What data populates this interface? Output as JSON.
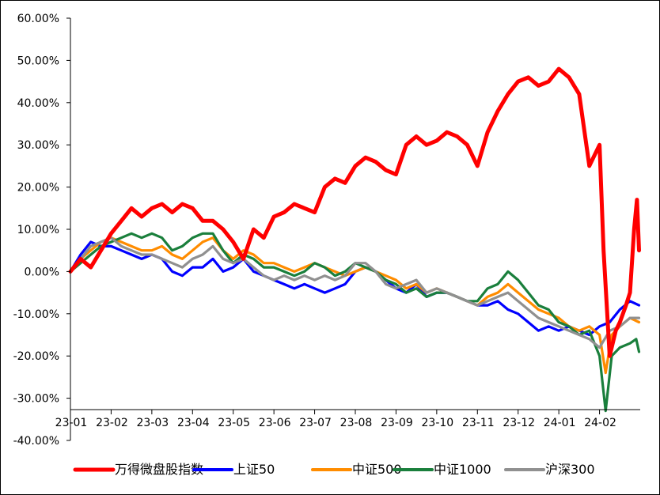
{
  "chart_data": {
    "type": "line",
    "title": "",
    "xlabel": "",
    "ylabel": "",
    "y_unit": "%",
    "ylim": [
      -40,
      60
    ],
    "yticks": [
      60,
      50,
      40,
      30,
      20,
      10,
      0,
      -10,
      -20,
      -30,
      -40
    ],
    "ytick_labels": [
      "60.00%",
      "50.00%",
      "40.00%",
      "30.00%",
      "20.00%",
      "10.00%",
      "0.00%",
      "-10.00%",
      "-20.00%",
      "-30.00%",
      "-40.00%"
    ],
    "xlim": [
      0,
      14
    ],
    "xticks": [
      0,
      1,
      2,
      3,
      4,
      5,
      6,
      7,
      8,
      9,
      10,
      11,
      12,
      13
    ],
    "xtick_labels": [
      "23-01",
      "23-02",
      "23-03",
      "23-04",
      "23-05",
      "23-06",
      "23-07",
      "23-08",
      "23-09",
      "23-10",
      "23-11",
      "23-12",
      "24-01",
      "24-02"
    ],
    "x_note_axis": "months since 23-01 start",
    "grid": false,
    "legend_position": "bottom",
    "series": [
      {
        "name": "万得微盘股指数",
        "color": "#ff0000",
        "x": [
          0,
          0.25,
          0.5,
          0.75,
          1.0,
          1.25,
          1.5,
          1.75,
          2.0,
          2.25,
          2.5,
          2.75,
          3.0,
          3.25,
          3.5,
          3.75,
          4.0,
          4.25,
          4.5,
          4.75,
          5.0,
          5.25,
          5.5,
          5.75,
          6.0,
          6.25,
          6.5,
          6.75,
          7.0,
          7.25,
          7.5,
          7.75,
          8.0,
          8.25,
          8.5,
          8.75,
          9.0,
          9.25,
          9.5,
          9.75,
          10.0,
          10.25,
          10.5,
          10.75,
          11.0,
          11.25,
          11.5,
          11.75,
          12.0,
          12.25,
          12.5,
          12.75,
          13.0,
          13.1,
          13.25,
          13.4,
          13.5,
          13.65,
          13.75,
          13.85,
          13.92,
          13.97
        ],
        "values": [
          0,
          3,
          1,
          5,
          9,
          12,
          15,
          13,
          15,
          16,
          14,
          16,
          15,
          12,
          12,
          10,
          7,
          3,
          10,
          8,
          13,
          14,
          16,
          15,
          14,
          20,
          22,
          21,
          25,
          27,
          26,
          24,
          23,
          30,
          32,
          30,
          31,
          33,
          32,
          30,
          25,
          33,
          38,
          42,
          45,
          46,
          44,
          45,
          48,
          46,
          42,
          25,
          30,
          5,
          -20,
          -14,
          -12,
          -8,
          -5,
          10,
          17,
          5
        ]
      },
      {
        "name": "上证50",
        "color": "#0000ff",
        "x": [
          0,
          0.25,
          0.5,
          0.75,
          1.0,
          1.25,
          1.5,
          1.75,
          2.0,
          2.25,
          2.5,
          2.75,
          3.0,
          3.25,
          3.5,
          3.75,
          4.0,
          4.25,
          4.5,
          4.75,
          5.0,
          5.25,
          5.5,
          5.75,
          6.0,
          6.25,
          6.5,
          6.75,
          7.0,
          7.25,
          7.5,
          7.75,
          8.0,
          8.25,
          8.5,
          8.75,
          9.0,
          9.25,
          9.5,
          9.75,
          10.0,
          10.25,
          10.5,
          10.75,
          11.0,
          11.25,
          11.5,
          11.75,
          12.0,
          12.25,
          12.5,
          12.75,
          13.0,
          13.25,
          13.5,
          13.75,
          13.97
        ],
        "values": [
          0,
          4,
          7,
          6,
          6,
          5,
          4,
          3,
          4,
          3,
          0,
          -1,
          1,
          1,
          3,
          0,
          1,
          3,
          0,
          -1,
          -2,
          -3,
          -4,
          -3,
          -4,
          -5,
          -4,
          -3,
          0,
          1,
          0,
          -2,
          -4,
          -5,
          -3,
          -6,
          -5,
          -5,
          -6,
          -7,
          -8,
          -8,
          -7,
          -9,
          -10,
          -12,
          -14,
          -13,
          -14,
          -13,
          -14,
          -15,
          -13,
          -12,
          -9,
          -7,
          -8
        ]
      },
      {
        "name": "中证500",
        "color": "#ff8c00",
        "x": [
          0,
          0.25,
          0.5,
          0.75,
          1.0,
          1.25,
          1.5,
          1.75,
          2.0,
          2.25,
          2.5,
          2.75,
          3.0,
          3.25,
          3.5,
          3.75,
          4.0,
          4.25,
          4.5,
          4.75,
          5.0,
          5.25,
          5.5,
          5.75,
          6.0,
          6.25,
          6.5,
          6.75,
          7.0,
          7.25,
          7.5,
          7.75,
          8.0,
          8.25,
          8.5,
          8.75,
          9.0,
          9.25,
          9.5,
          9.75,
          10.0,
          10.25,
          10.5,
          10.75,
          11.0,
          11.25,
          11.5,
          11.75,
          12.0,
          12.25,
          12.5,
          12.75,
          13.0,
          13.15,
          13.3,
          13.5,
          13.75,
          13.97
        ],
        "values": [
          0,
          3,
          5,
          7,
          8,
          7,
          6,
          5,
          5,
          6,
          4,
          3,
          5,
          7,
          8,
          5,
          3,
          5,
          4,
          2,
          2,
          1,
          0,
          1,
          2,
          1,
          0,
          -1,
          0,
          1,
          0,
          -1,
          -2,
          -4,
          -3,
          -5,
          -4,
          -5,
          -6,
          -7,
          -8,
          -6,
          -5,
          -3,
          -5,
          -7,
          -9,
          -10,
          -11,
          -13,
          -14,
          -13,
          -15,
          -24,
          -15,
          -13,
          -11,
          -12
        ]
      },
      {
        "name": "中证1000",
        "color": "#1a7f3c",
        "x": [
          0,
          0.25,
          0.5,
          0.75,
          1.0,
          1.25,
          1.5,
          1.75,
          2.0,
          2.25,
          2.5,
          2.75,
          3.0,
          3.25,
          3.5,
          3.75,
          4.0,
          4.25,
          4.5,
          4.75,
          5.0,
          5.25,
          5.5,
          5.75,
          6.0,
          6.25,
          6.5,
          6.75,
          7.0,
          7.25,
          7.5,
          7.75,
          8.0,
          8.25,
          8.5,
          8.75,
          9.0,
          9.25,
          9.5,
          9.75,
          10.0,
          10.25,
          10.5,
          10.75,
          11.0,
          11.25,
          11.5,
          11.75,
          12.0,
          12.25,
          12.5,
          12.75,
          13.0,
          13.15,
          13.3,
          13.5,
          13.75,
          13.9,
          13.97
        ],
        "values": [
          0,
          2,
          4,
          6,
          7,
          8,
          9,
          8,
          9,
          8,
          5,
          6,
          8,
          9,
          9,
          5,
          2,
          4,
          3,
          1,
          1,
          0,
          -1,
          0,
          2,
          1,
          -1,
          0,
          2,
          1,
          0,
          -2,
          -3,
          -5,
          -4,
          -6,
          -5,
          -5,
          -6,
          -7,
          -7,
          -4,
          -3,
          0,
          -2,
          -5,
          -8,
          -9,
          -12,
          -13,
          -15,
          -14,
          -20,
          -33,
          -20,
          -18,
          -17,
          -16,
          -19
        ]
      },
      {
        "name": "沪深300",
        "color": "#909090",
        "x": [
          0,
          0.25,
          0.5,
          0.75,
          1.0,
          1.25,
          1.5,
          1.75,
          2.0,
          2.25,
          2.5,
          2.75,
          3.0,
          3.25,
          3.5,
          3.75,
          4.0,
          4.25,
          4.5,
          4.75,
          5.0,
          5.25,
          5.5,
          5.75,
          6.0,
          6.25,
          6.5,
          6.75,
          7.0,
          7.25,
          7.5,
          7.75,
          8.0,
          8.25,
          8.5,
          8.75,
          9.0,
          9.25,
          9.5,
          9.75,
          10.0,
          10.25,
          10.5,
          10.75,
          11.0,
          11.25,
          11.5,
          11.75,
          12.0,
          12.25,
          12.5,
          12.75,
          13.0,
          13.25,
          13.5,
          13.75,
          13.97
        ],
        "values": [
          0,
          3,
          6,
          7,
          8,
          6,
          5,
          4,
          4,
          3,
          2,
          1,
          3,
          4,
          6,
          3,
          2,
          3,
          1,
          -1,
          -2,
          -1,
          -2,
          -1,
          -2,
          -1,
          -2,
          -1,
          2,
          2,
          0,
          -3,
          -4,
          -3,
          -2,
          -5,
          -4,
          -5,
          -6,
          -7,
          -8,
          -7,
          -6,
          -5,
          -7,
          -9,
          -11,
          -12,
          -13,
          -14,
          -15,
          -16,
          -18,
          -14,
          -13,
          -11,
          -11
        ]
      }
    ]
  }
}
